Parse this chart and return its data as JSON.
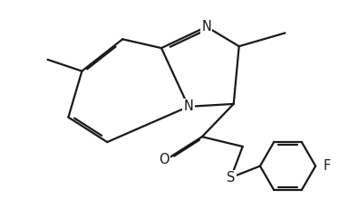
{
  "bg_color": "#ffffff",
  "line_color": "#1a1a1a",
  "line_width": 1.6,
  "font_size": 10.5,
  "atoms": {
    "N": "N",
    "S": "S",
    "O": "O",
    "F": "F"
  },
  "figsize": [
    3.74,
    2.2
  ],
  "dpi": 100
}
